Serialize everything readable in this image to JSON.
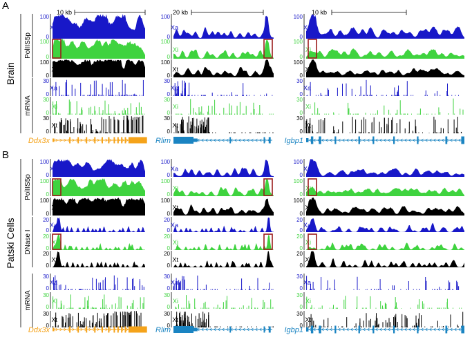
{
  "panels": [
    {
      "letter": "A",
      "side_label": "Brain",
      "groups": [
        {
          "label": "PolIIS5p",
          "tracks": [
            {
              "name": "Xa",
              "max": "100",
              "min": "0",
              "color": "#1818c8"
            },
            {
              "name": "Xi",
              "max": "100",
              "min": "0",
              "color": "#3fd33f"
            },
            {
              "name": "Xt",
              "max": "100",
              "min": "0",
              "color": "#000000"
            }
          ]
        },
        {
          "label": "mRNA",
          "tracks": [
            {
              "name": "Xa",
              "max": "30",
              "min": "0",
              "color": "#1818c8"
            },
            {
              "name": "Xi",
              "max": "30",
              "min": "0",
              "color": "#3fd33f"
            },
            {
              "name": "Xt",
              "max": "30",
              "min": "0",
              "color": "#000000"
            }
          ]
        }
      ],
      "genes": [
        "Ddx3x",
        "Rlim",
        "Igbp1"
      ]
    },
    {
      "letter": "B",
      "side_label": "Patski Cells",
      "groups": [
        {
          "label": "PolIIS5p",
          "tracks": [
            {
              "name": "Xa",
              "max": "100",
              "min": "0",
              "color": "#1818c8"
            },
            {
              "name": "Xi",
              "max": "100",
              "min": "0",
              "color": "#3fd33f"
            },
            {
              "name": "Xt",
              "max": "100",
              "min": "0",
              "color": "#000000"
            }
          ]
        },
        {
          "label": "DNase I",
          "tracks": [
            {
              "name": "Xa",
              "max": "20",
              "min": "0",
              "color": "#1818c8"
            },
            {
              "name": "Xi",
              "max": "20",
              "min": "0",
              "color": "#3fd33f"
            },
            {
              "name": "Xt",
              "max": "20",
              "min": "0",
              "color": "#000000"
            }
          ]
        },
        {
          "label": "mRNA",
          "tracks": [
            {
              "name": "Xa",
              "max": "30",
              "min": "0",
              "color": "#1818c8"
            },
            {
              "name": "Xi",
              "max": "30",
              "min": "0",
              "color": "#3fd33f"
            },
            {
              "name": "Xt",
              "max": "30",
              "min": "0",
              "color": "#000000"
            }
          ]
        }
      ],
      "genes": [
        "Ddx3x",
        "Rlim",
        "Igbp1"
      ]
    }
  ],
  "scale_bars": [
    "10 kb",
    "20 kb",
    "10 kb"
  ],
  "gene_colors": [
    "#f5a31a",
    "#1a84c2",
    "#1a84c2"
  ],
  "highlight_color": "#9b1c1c"
}
